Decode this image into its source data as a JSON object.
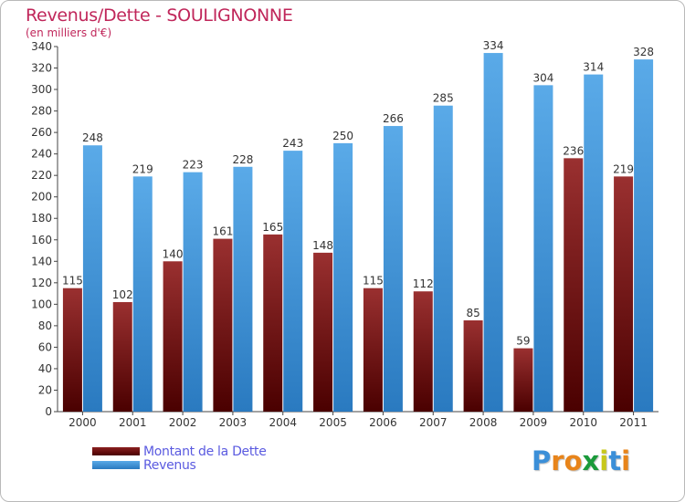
{
  "chart_data": {
    "type": "bar",
    "title": "Revenus/Dette - SOULIGNONNE",
    "subtitle": "(en milliers d'€)",
    "categories": [
      "2000",
      "2001",
      "2002",
      "2003",
      "2004",
      "2005",
      "2006",
      "2007",
      "2008",
      "2009",
      "2010",
      "2011"
    ],
    "series": [
      {
        "name": "Montant de la Dette",
        "color": "#7a1a1a",
        "values": [
          115,
          102,
          140,
          161,
          165,
          148,
          115,
          112,
          85,
          59,
          236,
          219
        ]
      },
      {
        "name": "Revenus",
        "color": "#4a9ee0",
        "values": [
          248,
          219,
          223,
          228,
          243,
          250,
          266,
          285,
          334,
          304,
          314,
          328
        ]
      }
    ],
    "ylim": [
      0,
      340
    ],
    "ytick_step": 20,
    "grid": false,
    "legend": "bottom-left"
  },
  "brand": {
    "letters": [
      "P",
      "r",
      "o",
      "x",
      "i",
      "t",
      "i"
    ],
    "colors": [
      "#3b8fd8",
      "#e8841a",
      "#e8841a",
      "#1a9a3a",
      "#c8c81a",
      "#3b8fd8",
      "#e8841a"
    ]
  }
}
